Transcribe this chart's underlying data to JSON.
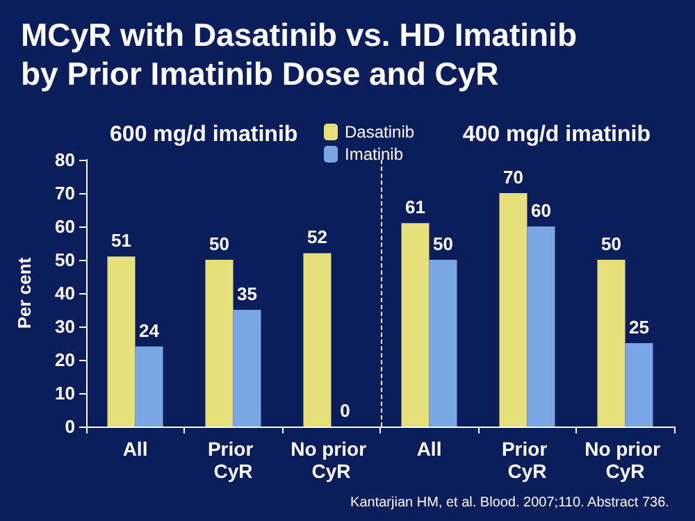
{
  "chart_data": {
    "type": "bar",
    "title": "MCyR with Dasatinib vs. HD Imatinib by Prior Imatinib Dose and CyR",
    "ylabel": "Per cent",
    "categories": [
      "All",
      "Prior CyR",
      "No prior CyR",
      "All",
      "Prior CyR",
      "No prior CyR"
    ],
    "series": [
      {
        "name": "Dasatinib",
        "color": "#e6e07a",
        "values": [
          51,
          50,
          52,
          61,
          70,
          50
        ]
      },
      {
        "name": "Imatinib",
        "color": "#7aa6e6",
        "values": [
          24,
          35,
          0,
          50,
          60,
          25
        ]
      }
    ],
    "ylim": [
      0,
      80
    ],
    "yticks": [
      0,
      10,
      20,
      30,
      40,
      50,
      60,
      70,
      80
    ],
    "grid": false,
    "legend": "top",
    "data_labels": true,
    "annotations": [
      "600 mg/d imatinib",
      "400 mg/d imatinib",
      "Kantarjian HM, et al. Blood. 2007;110. Abstract 736."
    ]
  }
}
